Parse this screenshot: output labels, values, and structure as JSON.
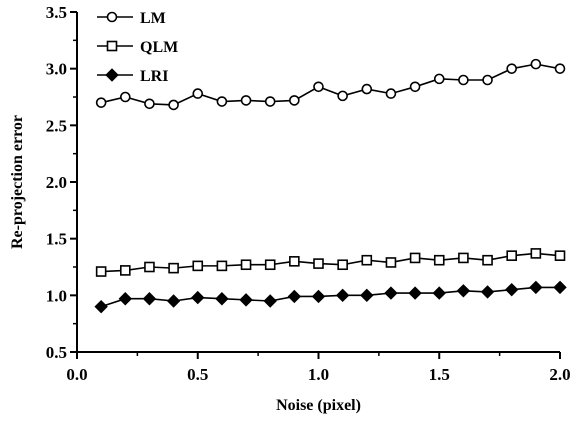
{
  "chart_data": {
    "type": "line",
    "title": "",
    "xlabel": "Noise (pixel)",
    "ylabel": "Re-projection error",
    "xlim": [
      0.0,
      2.0
    ],
    "ylim": [
      0.5,
      3.5
    ],
    "xticks": [
      "0.0",
      "0.5",
      "1.0",
      "1.5",
      "2.0"
    ],
    "yticks": [
      "0.5",
      "1.0",
      "1.5",
      "2.0",
      "2.5",
      "3.0",
      "3.5"
    ],
    "grid": false,
    "legend_position": "top-left",
    "x": [
      0.1,
      0.2,
      0.3,
      0.4,
      0.5,
      0.6,
      0.7,
      0.8,
      0.9,
      1.0,
      1.1,
      1.2,
      1.3,
      1.4,
      1.5,
      1.6,
      1.7,
      1.8,
      1.9,
      2.0
    ],
    "series": [
      {
        "name": "LM",
        "marker": "circle-open",
        "values": [
          2.7,
          2.75,
          2.69,
          2.68,
          2.78,
          2.71,
          2.72,
          2.71,
          2.72,
          2.84,
          2.76,
          2.82,
          2.78,
          2.84,
          2.91,
          2.9,
          2.9,
          3.0,
          3.04,
          3.0
        ]
      },
      {
        "name": "QLM",
        "marker": "square-open",
        "values": [
          1.21,
          1.22,
          1.25,
          1.24,
          1.26,
          1.26,
          1.27,
          1.27,
          1.3,
          1.28,
          1.27,
          1.31,
          1.29,
          1.33,
          1.31,
          1.33,
          1.31,
          1.35,
          1.37,
          1.35
        ]
      },
      {
        "name": "LRI",
        "marker": "diamond-filled",
        "values": [
          0.9,
          0.97,
          0.97,
          0.95,
          0.98,
          0.97,
          0.96,
          0.95,
          0.99,
          0.99,
          1.0,
          1.0,
          1.02,
          1.02,
          1.02,
          1.04,
          1.03,
          1.05,
          1.07,
          1.07
        ]
      }
    ]
  }
}
